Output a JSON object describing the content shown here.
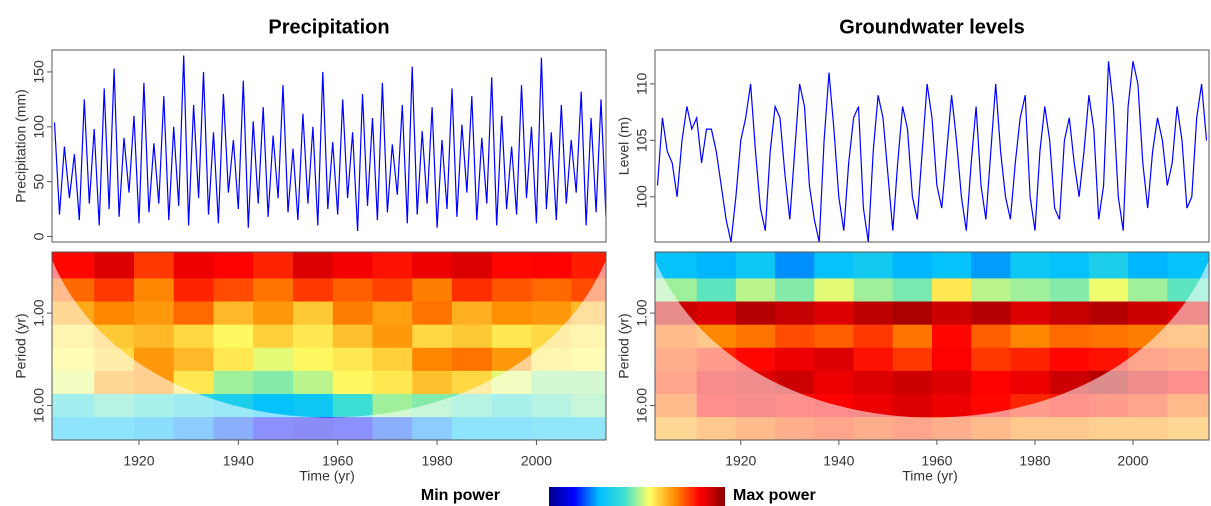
{
  "chart_data": [
    {
      "type": "line",
      "title": "Precipitation",
      "ylabel": "Precipitation (mm)",
      "color": "#0000ff",
      "x": [
        1903,
        1904,
        1905,
        1906,
        1907,
        1908,
        1909,
        1910,
        1911,
        1912,
        1913,
        1914,
        1915,
        1916,
        1917,
        1918,
        1919,
        1920,
        1921,
        1922,
        1923,
        1924,
        1925,
        1926,
        1927,
        1928,
        1929,
        1930,
        1931,
        1932,
        1933,
        1934,
        1935,
        1936,
        1937,
        1938,
        1939,
        1940,
        1941,
        1942,
        1943,
        1944,
        1945,
        1946,
        1947,
        1948,
        1949,
        1950,
        1951,
        1952,
        1953,
        1954,
        1955,
        1956,
        1957,
        1958,
        1959,
        1960,
        1961,
        1962,
        1963,
        1964,
        1965,
        1966,
        1967,
        1968,
        1969,
        1970,
        1971,
        1972,
        1973,
        1974,
        1975,
        1976,
        1977,
        1978,
        1979,
        1980,
        1981,
        1982,
        1983,
        1984,
        1985,
        1986,
        1987,
        1988,
        1989,
        1990,
        1991,
        1992,
        1993,
        1994,
        1995,
        1996,
        1997,
        1998,
        1999,
        2000,
        2001,
        2002,
        2003,
        2004,
        2005,
        2006,
        2007,
        2008,
        2009,
        2010,
        2011,
        2012,
        2013,
        2014,
        2015
      ],
      "values": [
        104,
        20,
        82,
        35,
        75,
        15,
        125,
        30,
        98,
        10,
        135,
        25,
        153,
        18,
        90,
        40,
        110,
        12,
        140,
        22,
        85,
        30,
        128,
        15,
        100,
        28,
        165,
        10,
        120,
        35,
        150,
        20,
        95,
        12,
        130,
        40,
        88,
        25,
        142,
        8,
        105,
        30,
        118,
        18,
        92,
        35,
        138,
        22,
        80,
        15,
        112,
        30,
        100,
        10,
        150,
        25,
        86,
        20,
        125,
        35,
        95,
        5,
        130,
        28,
        108,
        15,
        140,
        22,
        84,
        38,
        120,
        12,
        155,
        20,
        96,
        30,
        118,
        8,
        88,
        25,
        135,
        18,
        102,
        40,
        128,
        15,
        90,
        30,
        145,
        10,
        110,
        25,
        82,
        20,
        138,
        35,
        100,
        12,
        163,
        25,
        95,
        15,
        120,
        30,
        88,
        40,
        132,
        10,
        108,
        22,
        125,
        18,
        85
      ],
      "xlim": [
        1902.5,
        2014
      ],
      "ylim": [
        -5,
        170
      ],
      "yticks": [
        0,
        50,
        100,
        150
      ]
    },
    {
      "type": "heatmap",
      "xlabel": "Time (yr)",
      "ylabel": "Period (yr)",
      "log_y": true,
      "x": [
        1907,
        1915,
        1923,
        1931,
        1939,
        1947,
        1955,
        1963,
        1971,
        1979,
        1987,
        1995,
        2003,
        2011
      ],
      "y": [
        0.25,
        0.5,
        1,
        2,
        4,
        8,
        16,
        32
      ],
      "z": [
        [
          0.85,
          0.9,
          0.8,
          0.88,
          0.86,
          0.82,
          0.9,
          0.87,
          0.84,
          0.88,
          0.9,
          0.85,
          0.86,
          0.83
        ],
        [
          0.75,
          0.8,
          0.72,
          0.82,
          0.78,
          0.74,
          0.8,
          0.76,
          0.79,
          0.73,
          0.81,
          0.77,
          0.75,
          0.78
        ],
        [
          0.68,
          0.72,
          0.7,
          0.75,
          0.66,
          0.7,
          0.64,
          0.73,
          0.69,
          0.74,
          0.67,
          0.71,
          0.7,
          0.66
        ],
        [
          0.6,
          0.64,
          0.66,
          0.62,
          0.58,
          0.63,
          0.6,
          0.65,
          0.7,
          0.62,
          0.64,
          0.6,
          0.62,
          0.6
        ],
        [
          0.58,
          0.62,
          0.7,
          0.66,
          0.6,
          0.55,
          0.58,
          0.6,
          0.63,
          0.72,
          0.74,
          0.7,
          0.6,
          0.58
        ],
        [
          0.55,
          0.68,
          0.7,
          0.6,
          0.5,
          0.48,
          0.52,
          0.58,
          0.6,
          0.65,
          0.62,
          0.55,
          0.5,
          0.5
        ],
        [
          0.4,
          0.45,
          0.42,
          0.38,
          0.35,
          0.3,
          0.32,
          0.42,
          0.5,
          0.48,
          0.45,
          0.42,
          0.45,
          0.48
        ],
        [
          0.3,
          0.3,
          0.28,
          0.25,
          0.2,
          0.15,
          0.12,
          0.15,
          0.2,
          0.25,
          0.3,
          0.3,
          0.32,
          0.32
        ]
      ],
      "xlim": [
        1902.5,
        2014
      ],
      "ylim": [
        0.16,
        45
      ],
      "zlim": [
        0,
        1
      ],
      "xticks": [
        1920,
        1940,
        1960,
        1980,
        2000
      ],
      "yticks": [
        {
          "value": 1,
          "label": "1.00"
        },
        {
          "value": 16,
          "label": "16.00"
        }
      ]
    },
    {
      "type": "line",
      "title": "Groundwater levels",
      "ylabel": "Level (m)",
      "color": "#0000ff",
      "x": [
        1903,
        1904,
        1905,
        1906,
        1907,
        1908,
        1909,
        1910,
        1911,
        1912,
        1913,
        1914,
        1915,
        1916,
        1917,
        1918,
        1919,
        1920,
        1921,
        1922,
        1923,
        1924,
        1925,
        1926,
        1927,
        1928,
        1929,
        1930,
        1931,
        1932,
        1933,
        1934,
        1935,
        1936,
        1937,
        1938,
        1939,
        1940,
        1941,
        1942,
        1943,
        1944,
        1945,
        1946,
        1947,
        1948,
        1949,
        1950,
        1951,
        1952,
        1953,
        1954,
        1955,
        1956,
        1957,
        1958,
        1959,
        1960,
        1961,
        1962,
        1963,
        1964,
        1965,
        1966,
        1967,
        1968,
        1969,
        1970,
        1971,
        1972,
        1973,
        1974,
        1975,
        1976,
        1977,
        1978,
        1979,
        1980,
        1981,
        1982,
        1983,
        1984,
        1985,
        1986,
        1987,
        1988,
        1989,
        1990,
        1991,
        1992,
        1993,
        1994,
        1995,
        1996,
        1997,
        1998,
        1999,
        2000,
        2001,
        2002,
        2003,
        2004,
        2005,
        2006,
        2007,
        2008,
        2009,
        2010,
        2011,
        2012,
        2013,
        2014,
        2015
      ],
      "values": [
        101,
        107,
        104,
        103,
        100,
        105,
        108,
        106,
        107,
        103,
        106,
        106,
        104,
        101,
        98,
        96,
        100,
        105,
        107,
        110,
        104,
        99,
        97,
        104,
        108,
        107,
        102,
        98,
        104,
        110,
        108,
        101,
        98,
        96,
        105,
        111,
        106,
        100,
        97,
        103,
        107,
        108,
        99,
        96,
        104,
        109,
        107,
        102,
        97,
        103,
        108,
        106,
        100,
        98,
        104,
        110,
        107,
        101,
        99,
        104,
        109,
        105,
        100,
        97,
        103,
        108,
        101,
        98,
        104,
        110,
        104,
        100,
        98,
        103,
        107,
        109,
        100,
        97,
        104,
        108,
        105,
        99,
        98,
        105,
        107,
        103,
        100,
        104,
        109,
        106,
        98,
        101,
        112,
        108,
        100,
        97,
        108,
        112,
        110,
        103,
        99,
        104,
        107,
        105,
        101,
        103,
        108,
        105,
        99,
        100,
        107,
        110,
        105
      ],
      "xlim": [
        1902.5,
        2015.5
      ],
      "ylim": [
        96,
        113
      ],
      "yticks": [
        100,
        105,
        110
      ]
    },
    {
      "type": "heatmap",
      "xlabel": "Time (yr)",
      "ylabel": "Period (yr)",
      "log_y": true,
      "x": [
        1907,
        1915,
        1923,
        1931,
        1939,
        1947,
        1955,
        1963,
        1971,
        1979,
        1987,
        1995,
        2003,
        2011
      ],
      "y": [
        0.25,
        0.5,
        1,
        2,
        4,
        8,
        16,
        32
      ],
      "z": [
        [
          0.3,
          0.28,
          0.32,
          0.25,
          0.3,
          0.33,
          0.28,
          0.3,
          0.26,
          0.32,
          0.3,
          0.35,
          0.28,
          0.3
        ],
        [
          0.5,
          0.45,
          0.52,
          0.48,
          0.55,
          0.5,
          0.47,
          0.6,
          0.52,
          0.5,
          0.48,
          0.56,
          0.5,
          0.45
        ],
        [
          0.92,
          0.9,
          0.95,
          0.93,
          0.9,
          0.94,
          0.96,
          0.92,
          0.95,
          0.9,
          0.93,
          0.95,
          0.92,
          0.9
        ],
        [
          0.75,
          0.72,
          0.74,
          0.78,
          0.76,
          0.8,
          0.74,
          0.85,
          0.76,
          0.72,
          0.75,
          0.74,
          0.73,
          0.72
        ],
        [
          0.78,
          0.82,
          0.85,
          0.88,
          0.9,
          0.84,
          0.8,
          0.86,
          0.8,
          0.82,
          0.85,
          0.84,
          0.8,
          0.78
        ],
        [
          0.8,
          0.88,
          0.9,
          0.92,
          0.88,
          0.9,
          0.92,
          0.9,
          0.86,
          0.88,
          0.92,
          0.95,
          0.9,
          0.85
        ],
        [
          0.75,
          0.85,
          0.88,
          0.85,
          0.86,
          0.88,
          0.9,
          0.88,
          0.85,
          0.82,
          0.84,
          0.82,
          0.8,
          0.75
        ],
        [
          0.68,
          0.72,
          0.75,
          0.78,
          0.8,
          0.78,
          0.8,
          0.78,
          0.75,
          0.72,
          0.72,
          0.7,
          0.7,
          0.68
        ]
      ],
      "xlim": [
        1902.5,
        2015.5
      ],
      "ylim": [
        0.16,
        45
      ],
      "zlim": [
        0,
        1
      ],
      "xticks": [
        1920,
        1940,
        1960,
        1980,
        2000
      ],
      "yticks": [
        {
          "value": 1,
          "label": "1.00"
        },
        {
          "value": 16,
          "label": "16.00"
        }
      ]
    }
  ],
  "colorbar": {
    "min_label": "Min power",
    "max_label": "Max power",
    "colors": [
      "#00008b",
      "#0000ff",
      "#00bfff",
      "#40e0d0",
      "#ffff66",
      "#ff8c00",
      "#ff0000",
      "#8b0000"
    ]
  }
}
